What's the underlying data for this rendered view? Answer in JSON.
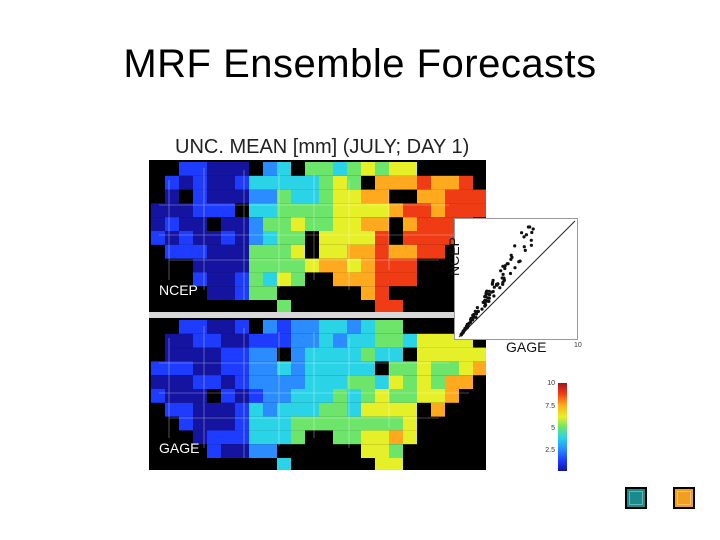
{
  "slide": {
    "title": "MRF Ensemble Forecasts"
  },
  "figure": {
    "title": "UNC. MEAN [mm] (JULY; DAY 1)",
    "top_map_label": "NCEP",
    "bottom_map_label": "GAGE"
  },
  "scatter": {
    "ylabel": "NCEP",
    "xlabel": "GAGE",
    "xmax_label": "10"
  },
  "colorbar": {
    "ticks": [
      "10",
      "7.5",
      "5",
      "2.5"
    ],
    "colors": [
      "#1414a0",
      "#1e3cff",
      "#2a8cff",
      "#2ad4e6",
      "#6de46a",
      "#e6f028",
      "#ffaa1e",
      "#f03c14",
      "#a0141e"
    ]
  },
  "navigation": {
    "prev_color": "#1a8a8a",
    "next_color": "#f0a020"
  }
}
